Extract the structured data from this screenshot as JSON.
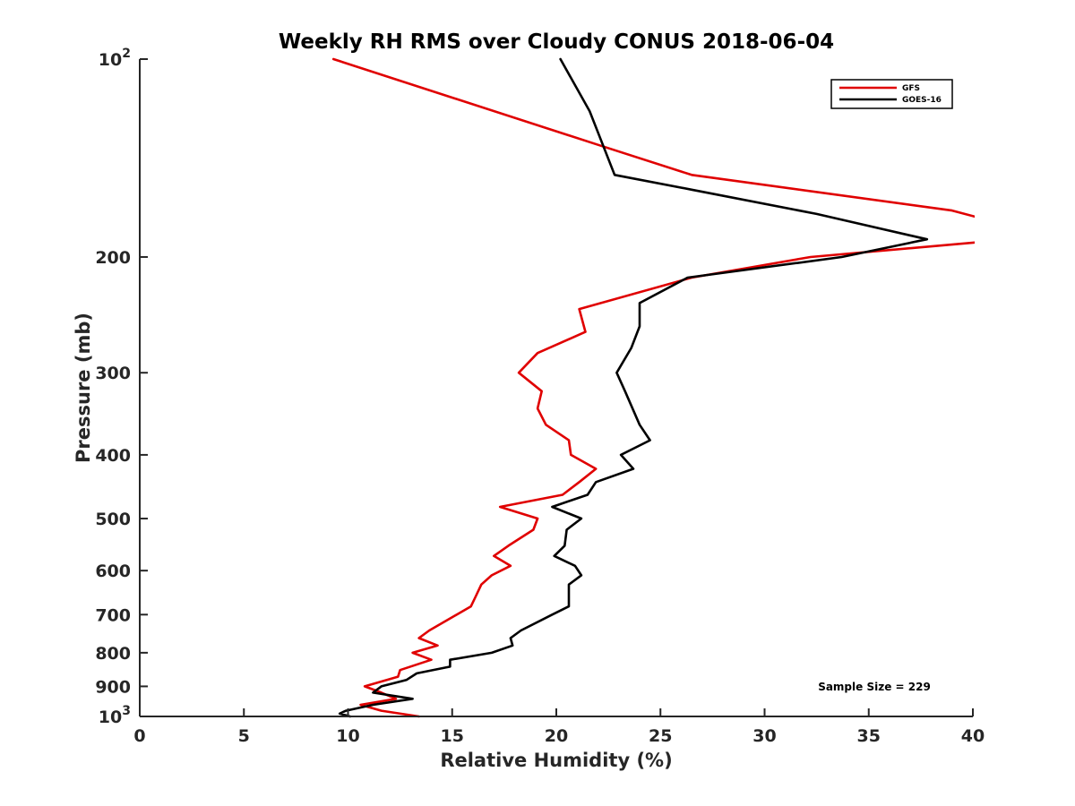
{
  "chart_data": {
    "type": "line",
    "title": "Weekly RH RMS over Cloudy CONUS 2018-06-04",
    "xlabel": "Relative Humidity (%)",
    "ylabel": "Pressure (mb)",
    "xlim": [
      0,
      40
    ],
    "ylim": [
      100,
      1000
    ],
    "y_scale": "log",
    "y_reversed": true,
    "x_ticks": [
      "0",
      "5",
      "10",
      "15",
      "20",
      "25",
      "30",
      "35",
      "40"
    ],
    "y_ticks": [
      {
        "value": 100,
        "base": "10",
        "exp": "2"
      },
      {
        "value": 200,
        "label": "200"
      },
      {
        "value": 300,
        "label": "300"
      },
      {
        "value": 400,
        "label": "400"
      },
      {
        "value": 500,
        "label": "500"
      },
      {
        "value": 600,
        "label": "600"
      },
      {
        "value": 700,
        "label": "700"
      },
      {
        "value": 800,
        "label": "800"
      },
      {
        "value": 900,
        "label": "900"
      },
      {
        "value": 1000,
        "base": "10",
        "exp": "3"
      }
    ],
    "grid": false,
    "legend_position": "top-right",
    "annotation": "Sample Size = 229",
    "series": [
      {
        "name": "GFS",
        "color": "#e00000",
        "points": [
          {
            "x": 9.3,
            "y": 100
          },
          {
            "x": 22.0,
            "y": 135
          },
          {
            "x": 26.5,
            "y": 150
          },
          {
            "x": 39.0,
            "y": 170
          },
          {
            "x": 40.5,
            "y": 175
          },
          {
            "x": 40.2,
            "y": 190
          },
          {
            "x": 32.2,
            "y": 200
          },
          {
            "x": 26.5,
            "y": 215
          },
          {
            "x": 21.1,
            "y": 240
          },
          {
            "x": 21.4,
            "y": 260
          },
          {
            "x": 19.1,
            "y": 280
          },
          {
            "x": 18.2,
            "y": 300
          },
          {
            "x": 19.3,
            "y": 320
          },
          {
            "x": 19.1,
            "y": 340
          },
          {
            "x": 19.5,
            "y": 360
          },
          {
            "x": 20.6,
            "y": 380
          },
          {
            "x": 20.7,
            "y": 400
          },
          {
            "x": 21.9,
            "y": 420
          },
          {
            "x": 21.1,
            "y": 440
          },
          {
            "x": 20.3,
            "y": 460
          },
          {
            "x": 17.3,
            "y": 480
          },
          {
            "x": 19.1,
            "y": 500
          },
          {
            "x": 18.9,
            "y": 520
          },
          {
            "x": 17.7,
            "y": 550
          },
          {
            "x": 17.0,
            "y": 570
          },
          {
            "x": 17.8,
            "y": 590
          },
          {
            "x": 16.9,
            "y": 610
          },
          {
            "x": 16.4,
            "y": 630
          },
          {
            "x": 16.1,
            "y": 660
          },
          {
            "x": 15.9,
            "y": 680
          },
          {
            "x": 13.9,
            "y": 740
          },
          {
            "x": 13.4,
            "y": 760
          },
          {
            "x": 14.3,
            "y": 780
          },
          {
            "x": 13.1,
            "y": 800
          },
          {
            "x": 14.0,
            "y": 820
          },
          {
            "x": 12.5,
            "y": 850
          },
          {
            "x": 12.4,
            "y": 870
          },
          {
            "x": 10.8,
            "y": 900
          },
          {
            "x": 11.6,
            "y": 920
          },
          {
            "x": 12.3,
            "y": 940
          },
          {
            "x": 10.6,
            "y": 960
          },
          {
            "x": 11.6,
            "y": 980
          },
          {
            "x": 13.4,
            "y": 1000
          }
        ]
      },
      {
        "name": "GOES-16",
        "color": "#000000",
        "points": [
          {
            "x": 20.2,
            "y": 100
          },
          {
            "x": 21.6,
            "y": 120
          },
          {
            "x": 22.8,
            "y": 150
          },
          {
            "x": 26.5,
            "y": 158
          },
          {
            "x": 32.5,
            "y": 172
          },
          {
            "x": 37.8,
            "y": 188
          },
          {
            "x": 33.7,
            "y": 200
          },
          {
            "x": 26.3,
            "y": 215
          },
          {
            "x": 24.0,
            "y": 235
          },
          {
            "x": 24.0,
            "y": 255
          },
          {
            "x": 23.6,
            "y": 275
          },
          {
            "x": 22.9,
            "y": 300
          },
          {
            "x": 23.3,
            "y": 320
          },
          {
            "x": 24.0,
            "y": 360
          },
          {
            "x": 24.5,
            "y": 380
          },
          {
            "x": 23.1,
            "y": 400
          },
          {
            "x": 23.7,
            "y": 420
          },
          {
            "x": 21.9,
            "y": 440
          },
          {
            "x": 21.5,
            "y": 460
          },
          {
            "x": 19.8,
            "y": 480
          },
          {
            "x": 21.2,
            "y": 500
          },
          {
            "x": 20.5,
            "y": 520
          },
          {
            "x": 20.4,
            "y": 550
          },
          {
            "x": 19.9,
            "y": 570
          },
          {
            "x": 20.9,
            "y": 590
          },
          {
            "x": 21.2,
            "y": 610
          },
          {
            "x": 20.6,
            "y": 630
          },
          {
            "x": 20.6,
            "y": 660
          },
          {
            "x": 20.6,
            "y": 680
          },
          {
            "x": 19.8,
            "y": 700
          },
          {
            "x": 18.3,
            "y": 740
          },
          {
            "x": 17.8,
            "y": 760
          },
          {
            "x": 17.9,
            "y": 780
          },
          {
            "x": 16.9,
            "y": 800
          },
          {
            "x": 14.9,
            "y": 820
          },
          {
            "x": 14.9,
            "y": 840
          },
          {
            "x": 13.3,
            "y": 860
          },
          {
            "x": 12.8,
            "y": 880
          },
          {
            "x": 11.6,
            "y": 900
          },
          {
            "x": 11.2,
            "y": 920
          },
          {
            "x": 13.1,
            "y": 940
          },
          {
            "x": 11.2,
            "y": 960
          },
          {
            "x": 9.9,
            "y": 980
          },
          {
            "x": 9.6,
            "y": 990
          },
          {
            "x": 10.1,
            "y": 1000
          }
        ]
      }
    ]
  }
}
